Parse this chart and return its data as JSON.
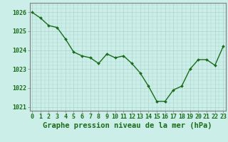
{
  "x": [
    0,
    1,
    2,
    3,
    4,
    5,
    6,
    7,
    8,
    9,
    10,
    11,
    12,
    13,
    14,
    15,
    16,
    17,
    18,
    19,
    20,
    21,
    22,
    23
  ],
  "y": [
    1026.0,
    1025.7,
    1025.3,
    1025.2,
    1024.6,
    1023.9,
    1023.7,
    1023.6,
    1023.3,
    1023.8,
    1023.6,
    1023.7,
    1023.3,
    1022.8,
    1022.1,
    1021.3,
    1021.3,
    1021.9,
    1022.1,
    1023.0,
    1023.5,
    1023.5,
    1023.2,
    1024.2
  ],
  "line_color": "#1a6b1a",
  "marker_color": "#1a6b1a",
  "bg_color": "#cceee8",
  "grid_color": "#aad4cc",
  "axis_color": "#1a6b1a",
  "border_color": "#808080",
  "xlabel": "Graphe pression niveau de la mer (hPa)",
  "ylim_min": 1020.8,
  "ylim_max": 1026.5,
  "yticks": [
    1021,
    1022,
    1023,
    1024,
    1025,
    1026
  ],
  "xticks": [
    0,
    1,
    2,
    3,
    4,
    5,
    6,
    7,
    8,
    9,
    10,
    11,
    12,
    13,
    14,
    15,
    16,
    17,
    18,
    19,
    20,
    21,
    22,
    23
  ],
  "xlabel_fontsize": 7.5,
  "tick_fontsize": 6.0
}
